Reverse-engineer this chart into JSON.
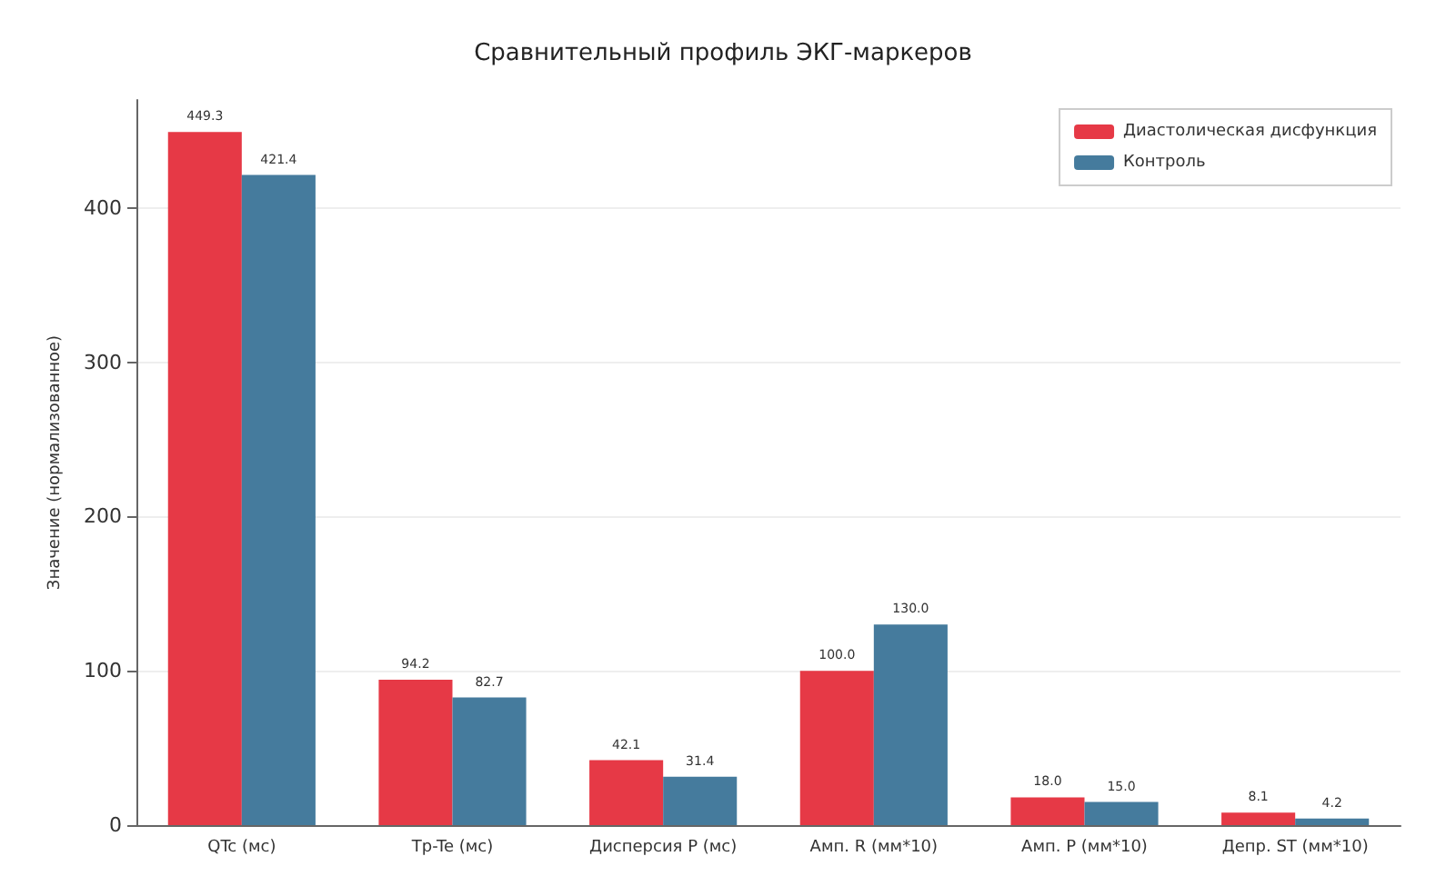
{
  "chart_data": {
    "type": "bar",
    "title": "Сравнительный профиль ЭКГ-маркеров",
    "ylabel": "Значение (нормализованное)",
    "categories": [
      "QTc (мс)",
      "Tp-Te (мс)",
      "Дисперсия P (мс)",
      "Амп. R (мм*10)",
      "Амп. P (мм*10)",
      "Депр. ST (мм*10)"
    ],
    "series": [
      {
        "name": "Диастолическая дисфункция",
        "color": "#e63946",
        "values": [
          449.3,
          94.2,
          42.1,
          100.0,
          18.0,
          8.1
        ]
      },
      {
        "name": "Контроль",
        "color": "#457b9d",
        "values": [
          421.4,
          82.7,
          31.4,
          130.0,
          15.0,
          4.2
        ]
      }
    ],
    "value_labels": [
      [
        "449.3",
        "94.2",
        "42.1",
        "100.0",
        "18.0",
        "8.1"
      ],
      [
        "421.4",
        "82.7",
        "31.4",
        "130.0",
        "15.0",
        "4.2"
      ]
    ],
    "ylim": [
      0,
      470
    ],
    "yticks": [
      0,
      100,
      200,
      300,
      400
    ],
    "grid": "y",
    "legend": "top right"
  }
}
